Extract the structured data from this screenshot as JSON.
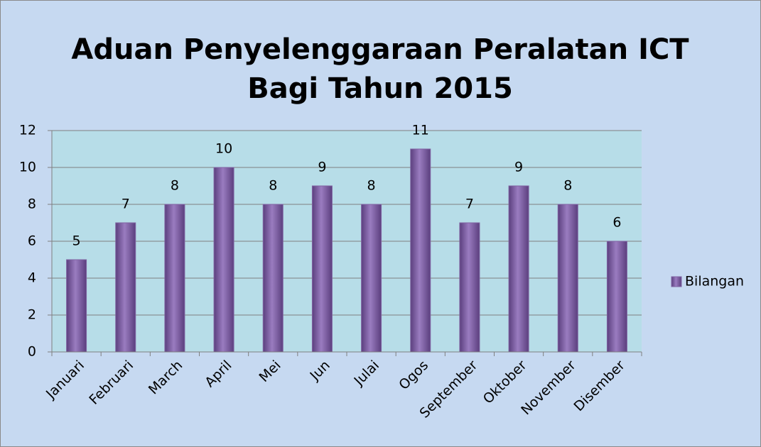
{
  "chart_data": {
    "type": "bar",
    "title": [
      "Aduan Penyelenggaraan Peralatan ICT",
      "Bagi Tahun 2015"
    ],
    "categories": [
      "Januari",
      "Februari",
      "March",
      "April",
      "Mei",
      "Jun",
      "Julai",
      "Ogos",
      "September",
      "Oktober",
      "November",
      "Disember"
    ],
    "series": [
      {
        "name": "Bilangan",
        "color": "#8064a2",
        "values": [
          5,
          7,
          8,
          10,
          8,
          9,
          8,
          11,
          7,
          9,
          8,
          6
        ]
      }
    ],
    "ylim": [
      0,
      12
    ],
    "yticks": [
      0,
      2,
      4,
      6,
      8,
      10,
      12
    ],
    "grid": true,
    "legend": "right"
  }
}
